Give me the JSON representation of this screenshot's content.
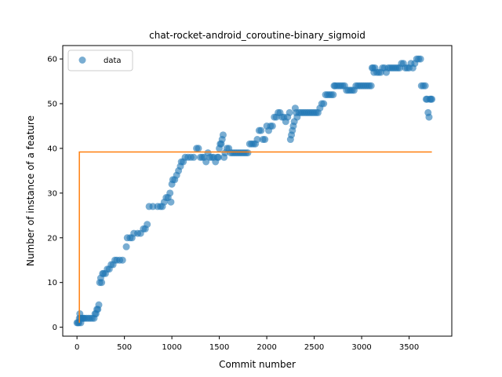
{
  "chart_data": {
    "type": "scatter",
    "title": "chat-rocket-android_coroutine-binary_sigmoid",
    "xlabel": "Commit number",
    "ylabel": "Number of instance of a feature",
    "xlim": [
      -150,
      3950
    ],
    "ylim": [
      -2,
      63
    ],
    "xticks": [
      0,
      500,
      1000,
      1500,
      2000,
      2500,
      3000,
      3500
    ],
    "yticks": [
      0,
      10,
      20,
      30,
      40,
      50,
      60
    ],
    "grid": false,
    "legend": {
      "placement": "top-left",
      "entries": [
        "data"
      ]
    },
    "colors": {
      "data": "#1f77b4",
      "fit": "#ff7f0e"
    },
    "series": [
      {
        "name": "data",
        "kind": "scatter",
        "points": [
          [
            0,
            1
          ],
          [
            10,
            1
          ],
          [
            20,
            1
          ],
          [
            25,
            2
          ],
          [
            30,
            3
          ],
          [
            35,
            2
          ],
          [
            40,
            1
          ],
          [
            50,
            2
          ],
          [
            60,
            2
          ],
          [
            70,
            2
          ],
          [
            80,
            2
          ],
          [
            100,
            2
          ],
          [
            120,
            2
          ],
          [
            140,
            2
          ],
          [
            160,
            2
          ],
          [
            180,
            2
          ],
          [
            190,
            3
          ],
          [
            200,
            3
          ],
          [
            210,
            4
          ],
          [
            220,
            4
          ],
          [
            230,
            5
          ],
          [
            240,
            10
          ],
          [
            250,
            11
          ],
          [
            260,
            10
          ],
          [
            270,
            12
          ],
          [
            280,
            12
          ],
          [
            300,
            12
          ],
          [
            320,
            13
          ],
          [
            340,
            13
          ],
          [
            360,
            14
          ],
          [
            380,
            14
          ],
          [
            400,
            15
          ],
          [
            420,
            15
          ],
          [
            450,
            15
          ],
          [
            480,
            15
          ],
          [
            520,
            18
          ],
          [
            530,
            20
          ],
          [
            560,
            20
          ],
          [
            580,
            20
          ],
          [
            600,
            21
          ],
          [
            640,
            21
          ],
          [
            670,
            21
          ],
          [
            700,
            22
          ],
          [
            720,
            22
          ],
          [
            740,
            23
          ],
          [
            760,
            27
          ],
          [
            800,
            27
          ],
          [
            850,
            27
          ],
          [
            880,
            27
          ],
          [
            900,
            27
          ],
          [
            920,
            28
          ],
          [
            940,
            29
          ],
          [
            960,
            29
          ],
          [
            980,
            30
          ],
          [
            990,
            28
          ],
          [
            1000,
            32
          ],
          [
            1010,
            33
          ],
          [
            1030,
            33
          ],
          [
            1050,
            34
          ],
          [
            1070,
            35
          ],
          [
            1090,
            36
          ],
          [
            1100,
            37
          ],
          [
            1120,
            37
          ],
          [
            1140,
            38
          ],
          [
            1170,
            38
          ],
          [
            1200,
            38
          ],
          [
            1230,
            38
          ],
          [
            1260,
            40
          ],
          [
            1280,
            40
          ],
          [
            1300,
            38
          ],
          [
            1320,
            38
          ],
          [
            1340,
            38
          ],
          [
            1360,
            37
          ],
          [
            1380,
            39
          ],
          [
            1400,
            38
          ],
          [
            1420,
            38
          ],
          [
            1440,
            38
          ],
          [
            1460,
            37
          ],
          [
            1480,
            38
          ],
          [
            1490,
            38
          ],
          [
            1500,
            40
          ],
          [
            1510,
            41
          ],
          [
            1520,
            41
          ],
          [
            1530,
            42
          ],
          [
            1540,
            43
          ],
          [
            1550,
            38
          ],
          [
            1560,
            39
          ],
          [
            1580,
            40
          ],
          [
            1600,
            40
          ],
          [
            1620,
            39
          ],
          [
            1640,
            39
          ],
          [
            1660,
            39
          ],
          [
            1680,
            39
          ],
          [
            1700,
            39
          ],
          [
            1720,
            39
          ],
          [
            1740,
            39
          ],
          [
            1760,
            39
          ],
          [
            1780,
            39
          ],
          [
            1800,
            39
          ],
          [
            1820,
            41
          ],
          [
            1840,
            41
          ],
          [
            1860,
            41
          ],
          [
            1880,
            41
          ],
          [
            1900,
            42
          ],
          [
            1920,
            44
          ],
          [
            1940,
            44
          ],
          [
            1960,
            42
          ],
          [
            1980,
            42
          ],
          [
            2000,
            45
          ],
          [
            2020,
            44
          ],
          [
            2040,
            45
          ],
          [
            2060,
            45
          ],
          [
            2080,
            47
          ],
          [
            2100,
            47
          ],
          [
            2120,
            48
          ],
          [
            2140,
            48
          ],
          [
            2160,
            47
          ],
          [
            2180,
            47
          ],
          [
            2200,
            46
          ],
          [
            2220,
            47
          ],
          [
            2240,
            48
          ],
          [
            2250,
            42
          ],
          [
            2260,
            43
          ],
          [
            2270,
            44
          ],
          [
            2280,
            45
          ],
          [
            2290,
            46
          ],
          [
            2300,
            49
          ],
          [
            2310,
            48
          ],
          [
            2320,
            47
          ],
          [
            2340,
            48
          ],
          [
            2360,
            48
          ],
          [
            2380,
            48
          ],
          [
            2400,
            48
          ],
          [
            2420,
            48
          ],
          [
            2440,
            48
          ],
          [
            2460,
            48
          ],
          [
            2480,
            48
          ],
          [
            2500,
            48
          ],
          [
            2520,
            48
          ],
          [
            2540,
            48
          ],
          [
            2560,
            49
          ],
          [
            2580,
            50
          ],
          [
            2600,
            50
          ],
          [
            2620,
            52
          ],
          [
            2640,
            52
          ],
          [
            2660,
            52
          ],
          [
            2680,
            52
          ],
          [
            2700,
            52
          ],
          [
            2710,
            54
          ],
          [
            2720,
            54
          ],
          [
            2740,
            54
          ],
          [
            2760,
            54
          ],
          [
            2780,
            54
          ],
          [
            2800,
            54
          ],
          [
            2820,
            54
          ],
          [
            2840,
            53
          ],
          [
            2860,
            53
          ],
          [
            2880,
            53
          ],
          [
            2900,
            53
          ],
          [
            2920,
            53
          ],
          [
            2940,
            54
          ],
          [
            2960,
            54
          ],
          [
            2980,
            54
          ],
          [
            3000,
            54
          ],
          [
            3020,
            54
          ],
          [
            3040,
            54
          ],
          [
            3060,
            54
          ],
          [
            3080,
            54
          ],
          [
            3100,
            54
          ],
          [
            3110,
            58
          ],
          [
            3120,
            58
          ],
          [
            3130,
            57
          ],
          [
            3140,
            58
          ],
          [
            3160,
            57
          ],
          [
            3180,
            57
          ],
          [
            3200,
            57
          ],
          [
            3220,
            58
          ],
          [
            3240,
            58
          ],
          [
            3260,
            57
          ],
          [
            3280,
            58
          ],
          [
            3300,
            58
          ],
          [
            3320,
            58
          ],
          [
            3340,
            58
          ],
          [
            3360,
            58
          ],
          [
            3380,
            58
          ],
          [
            3400,
            58
          ],
          [
            3420,
            59
          ],
          [
            3440,
            59
          ],
          [
            3460,
            58
          ],
          [
            3480,
            58
          ],
          [
            3500,
            58
          ],
          [
            3520,
            59
          ],
          [
            3540,
            58
          ],
          [
            3560,
            59
          ],
          [
            3580,
            60
          ],
          [
            3600,
            60
          ],
          [
            3620,
            60
          ],
          [
            3630,
            54
          ],
          [
            3650,
            54
          ],
          [
            3670,
            54
          ],
          [
            3680,
            51
          ],
          [
            3690,
            51
          ],
          [
            3700,
            48
          ],
          [
            3710,
            47
          ],
          [
            3720,
            51
          ],
          [
            3730,
            51
          ],
          [
            3740,
            51
          ]
        ]
      },
      {
        "kind": "line",
        "points": [
          [
            25,
            1
          ],
          [
            25,
            39.2
          ],
          [
            3740,
            39.2
          ]
        ]
      }
    ]
  }
}
